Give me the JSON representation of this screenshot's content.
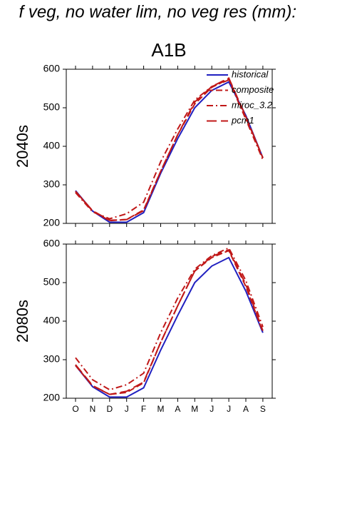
{
  "header": {
    "title": "f veg, no water lim, no veg res (mm):",
    "scenario": "A1B"
  },
  "chart_data": [
    {
      "type": "line",
      "ylabel": "2040s",
      "categories": [
        null,
        null,
        null,
        null,
        null,
        null,
        null,
        null,
        null,
        null,
        null,
        null
      ],
      "ylim": [
        200,
        600
      ],
      "yticks": [
        200,
        300,
        400,
        500,
        600
      ],
      "legend": "upper right",
      "series": [
        {
          "name": "historical",
          "color": "#2020c0",
          "dash": "solid",
          "values": [
            285,
            232,
            203,
            203,
            228,
            330,
            420,
            500,
            545,
            567,
            480,
            370
          ]
        },
        {
          "name": "composite",
          "color": "#c01818",
          "dash": "dash",
          "values": [
            283,
            232,
            207,
            210,
            235,
            335,
            430,
            510,
            553,
            575,
            475,
            370
          ]
        },
        {
          "name": "miroc_3.2",
          "color": "#c01818",
          "dash": "dashdot",
          "values": [
            280,
            230,
            212,
            225,
            255,
            360,
            445,
            520,
            555,
            572,
            470,
            365
          ]
        },
        {
          "name": "pcm1",
          "color": "#c01818",
          "dash": "longdash",
          "values": [
            283,
            233,
            208,
            210,
            233,
            335,
            430,
            515,
            555,
            577,
            477,
            370
          ]
        }
      ]
    },
    {
      "type": "line",
      "ylabel": "2080s",
      "categories": [
        "O",
        "N",
        "D",
        "J",
        "F",
        "M",
        "A",
        "M",
        "J",
        "J",
        "A",
        "S"
      ],
      "ylim": [
        200,
        600
      ],
      "yticks": [
        200,
        300,
        400,
        500,
        600
      ],
      "series": [
        {
          "color": "#2020c0",
          "dash": "solid",
          "values": [
            285,
            230,
            203,
            203,
            227,
            325,
            415,
            500,
            543,
            565,
            478,
            370
          ]
        },
        {
          "color": "#c01818",
          "dash": "dash",
          "values": [
            285,
            232,
            210,
            215,
            240,
            345,
            440,
            530,
            565,
            583,
            490,
            372
          ]
        },
        {
          "color": "#c01818",
          "dash": "dashdot",
          "values": [
            305,
            248,
            222,
            235,
            265,
            370,
            460,
            535,
            570,
            590,
            505,
            385
          ]
        },
        {
          "color": "#c01818",
          "dash": "longdash",
          "values": [
            287,
            233,
            210,
            218,
            242,
            345,
            440,
            530,
            568,
            585,
            495,
            375
          ]
        }
      ]
    }
  ]
}
